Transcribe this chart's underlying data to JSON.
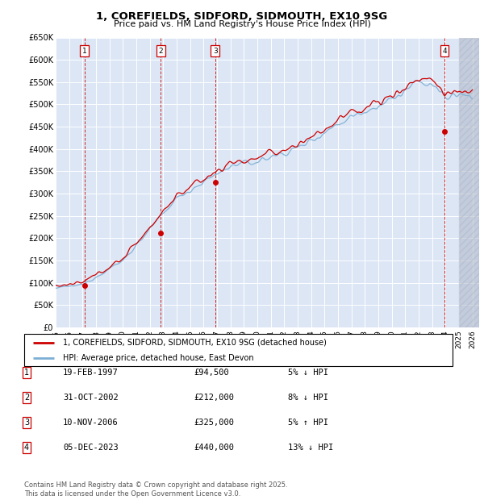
{
  "title": "1, COREFIELDS, SIDFORD, SIDMOUTH, EX10 9SG",
  "subtitle": "Price paid vs. HM Land Registry's House Price Index (HPI)",
  "ylim": [
    0,
    650000
  ],
  "yticks": [
    0,
    50000,
    100000,
    150000,
    200000,
    250000,
    300000,
    350000,
    400000,
    450000,
    500000,
    550000,
    600000,
    650000
  ],
  "ytick_labels": [
    "£0",
    "£50K",
    "£100K",
    "£150K",
    "£200K",
    "£250K",
    "£300K",
    "£350K",
    "£400K",
    "£450K",
    "£500K",
    "£550K",
    "£600K",
    "£650K"
  ],
  "xlim_start": 1995.0,
  "xlim_end": 2026.5,
  "background_color": "#ffffff",
  "plot_bg_color": "#dce6f5",
  "grid_color": "#ffffff",
  "hatch_color": "#b0b8c8",
  "red_line_color": "#cc0000",
  "blue_line_color": "#7bafd4",
  "transactions": [
    {
      "num": 1,
      "date": "19-FEB-1997",
      "price": 94500,
      "year": 1997.13
    },
    {
      "num": 2,
      "date": "31-OCT-2002",
      "price": 212000,
      "year": 2002.83
    },
    {
      "num": 3,
      "date": "10-NOV-2006",
      "price": 325000,
      "year": 2006.87
    },
    {
      "num": 4,
      "date": "05-DEC-2023",
      "price": 440000,
      "year": 2023.92
    }
  ],
  "legend_label_red": "1, COREFIELDS, SIDFORD, SIDMOUTH, EX10 9SG (detached house)",
  "legend_label_blue": "HPI: Average price, detached house, East Devon",
  "footer": "Contains HM Land Registry data © Crown copyright and database right 2025.\nThis data is licensed under the Open Government Licence v3.0.",
  "table_rows": [
    {
      "num": 1,
      "date": "19-FEB-1997",
      "price": "£94,500",
      "info": "5% ↓ HPI"
    },
    {
      "num": 2,
      "date": "31-OCT-2002",
      "price": "£212,000",
      "info": "8% ↓ HPI"
    },
    {
      "num": 3,
      "date": "10-NOV-2006",
      "price": "£325,000",
      "info": "5% ↑ HPI"
    },
    {
      "num": 4,
      "date": "05-DEC-2023",
      "price": "£440,000",
      "info": "13% ↓ HPI"
    }
  ]
}
